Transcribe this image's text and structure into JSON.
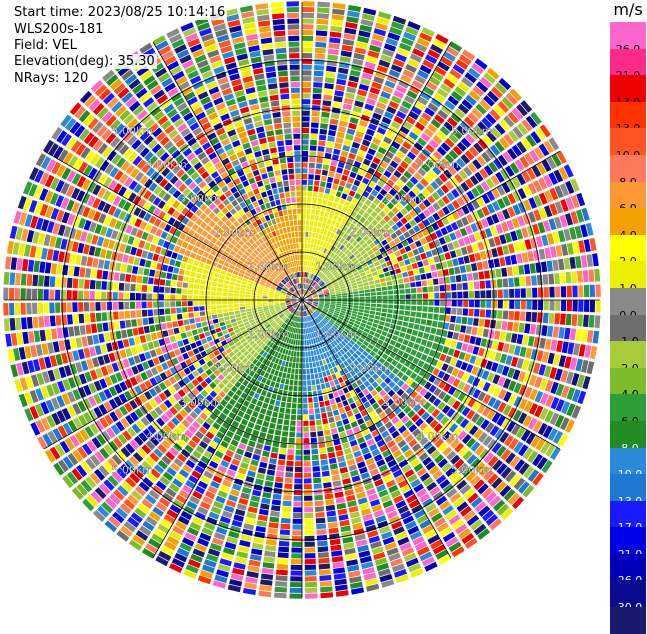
{
  "info": {
    "start_time": "Start time: 2023/08/25 10:14:16",
    "site": "WLS200s-181",
    "field": "Field: VEL",
    "elevation": "Elevation(deg): 35.30",
    "nrays": "NRays: 120"
  },
  "chart_data": {
    "type": "heatmap",
    "projection": "polar-ppi",
    "title": "",
    "field": "VEL",
    "units": "m/s",
    "n_rays": 120,
    "max_range_km": 6.2,
    "range_rings_km": [
      1.0,
      2.0,
      3.0,
      4.0,
      5.0
    ],
    "ring_labels": [
      "1.00km",
      "2.00km",
      "3.00km",
      "4.00km",
      "5.00km"
    ],
    "spoke_angles_deg": [
      0,
      30,
      60,
      90,
      120,
      150,
      180,
      210,
      240,
      270,
      300,
      330
    ],
    "sector_summary": [
      {
        "azimuth_deg": [
          330,
          360
        ],
        "range_km": [
          0.5,
          3.0
        ],
        "velocity_ms": 6.0
      },
      {
        "azimuth_deg": [
          0,
          30
        ],
        "range_km": [
          0.5,
          2.2
        ],
        "velocity_ms": 2.0
      },
      {
        "azimuth_deg": [
          30,
          80
        ],
        "range_km": [
          0.5,
          2.5
        ],
        "velocity_ms": -1.0
      },
      {
        "azimuth_deg": [
          80,
          130
        ],
        "range_km": [
          0.3,
          3.0
        ],
        "velocity_ms": -4.0
      },
      {
        "azimuth_deg": [
          130,
          180
        ],
        "range_km": [
          0.3,
          3.5
        ],
        "velocity_ms": -8.0
      },
      {
        "azimuth_deg": [
          180,
          220
        ],
        "range_km": [
          0.3,
          3.5
        ],
        "velocity_ms": -6.0
      },
      {
        "azimuth_deg": [
          220,
          260
        ],
        "range_km": [
          0.3,
          2.5
        ],
        "velocity_ms": -1.0
      },
      {
        "azimuth_deg": [
          260,
          290
        ],
        "range_km": [
          0.3,
          2.5
        ],
        "velocity_ms": 2.0
      },
      {
        "azimuth_deg": [
          290,
          330
        ],
        "range_km": [
          0.5,
          2.8
        ],
        "velocity_ms": 8.0
      }
    ],
    "colorbar": {
      "unit_label": "m/s",
      "boundaries": [
        -30.0,
        -26.0,
        -21.0,
        -17.0,
        -13.0,
        -10.0,
        -8.0,
        -6.0,
        -4.0,
        -2.0,
        -1.0,
        0.0,
        1.0,
        2.0,
        4.0,
        6.0,
        8.0,
        10.0,
        13.0,
        17.0,
        21.0,
        26.0
      ],
      "tick_labels": [
        "-30.0",
        "-26.0",
        "-21.0",
        "-17.0",
        "-13.0",
        "-10.0",
        "-8.0",
        "-6.0",
        "-4.0",
        "-2.0",
        "-1.0",
        "0.0",
        "1.0",
        "2.0",
        "4.0",
        "6.0",
        "8.0",
        "10.0",
        "13.0",
        "17.0",
        "21.0",
        "26.0"
      ],
      "colors": [
        "#1a1a6e",
        "#0a0a90",
        "#0000b8",
        "#0000e6",
        "#1a1aff",
        "#1e78d2",
        "#2a8ad8",
        "#228b22",
        "#2e9e3a",
        "#7cbb2a",
        "#a6cc3a",
        "#6e6e6e",
        "#8a8a8a",
        "#eeee00",
        "#ffff00",
        "#f4a000",
        "#ff9933",
        "#ff7a5a",
        "#ff5522",
        "#ff3300",
        "#ee0000",
        "#ff2a8a",
        "#ff66cc"
      ]
    }
  }
}
